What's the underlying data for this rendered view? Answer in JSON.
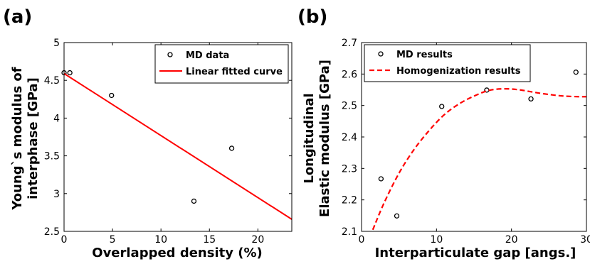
{
  "chart_data": [
    {
      "type": "scatter",
      "panel_label": "(a)",
      "title": "",
      "xlabel": "Overlapped density (%)",
      "ylabel_lines": [
        "Young`s modulus of",
        "interphase [GPa]"
      ],
      "xlim": [
        0,
        23.5
      ],
      "ylim": [
        2.5,
        5
      ],
      "xticks": [
        0,
        5,
        10,
        15,
        20
      ],
      "yticks": [
        2.5,
        3,
        3.5,
        4,
        4.5,
        5
      ],
      "grid": false,
      "legend_position": "top-right",
      "series": [
        {
          "name": "MD data",
          "kind": "markers",
          "color": "#000000",
          "x": [
            0.0,
            0.6,
            4.9,
            13.4,
            17.3
          ],
          "y": [
            4.6,
            4.6,
            4.3,
            2.9,
            3.6
          ]
        },
        {
          "name": "Linear fitted curve",
          "kind": "line",
          "color": "#ff0000",
          "x": [
            0,
            23.5
          ],
          "y": [
            4.59,
            2.66
          ]
        }
      ]
    },
    {
      "type": "scatter",
      "panel_label": "(b)",
      "title": "",
      "xlabel": "Interparticulate gap [angs.]",
      "ylabel_lines": [
        "Longitudinal",
        "Elastic modulus [GPa]"
      ],
      "xlim": [
        0,
        30
      ],
      "ylim": [
        2.1,
        2.7
      ],
      "xticks": [
        0,
        10,
        20,
        30
      ],
      "yticks": [
        2.1,
        2.2,
        2.3,
        2.4,
        2.5,
        2.6,
        2.7
      ],
      "grid": false,
      "legend_position": "top-left",
      "series": [
        {
          "name": "MD results",
          "kind": "markers",
          "color": "#000000",
          "x": [
            2.6,
            4.7,
            10.7,
            16.7,
            22.6,
            28.6
          ],
          "y": [
            2.267,
            2.149,
            2.497,
            2.549,
            2.521,
            2.606
          ]
        },
        {
          "name": "Homogenization results",
          "kind": "dashed-line",
          "color": "#ff0000",
          "x": [
            1.5,
            3,
            5,
            7,
            9,
            11,
            13,
            15,
            17,
            19,
            21,
            23,
            25,
            27,
            29,
            30
          ],
          "y": [
            2.105,
            2.19,
            2.285,
            2.36,
            2.42,
            2.47,
            2.505,
            2.53,
            2.548,
            2.553,
            2.55,
            2.542,
            2.535,
            2.53,
            2.528,
            2.528
          ]
        }
      ]
    }
  ]
}
